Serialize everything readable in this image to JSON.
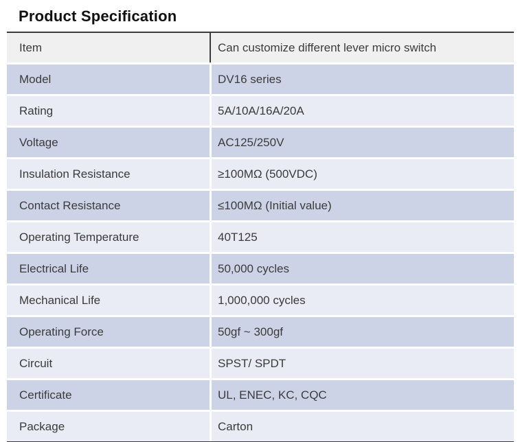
{
  "page": {
    "title": "Product Specification"
  },
  "table": {
    "columns": [
      "label",
      "value"
    ],
    "rows": [
      {
        "label": "Item",
        "value": "Can customize different lever micro switch"
      },
      {
        "label": "Model",
        "value": "DV16 series"
      },
      {
        "label": "Rating",
        "value": "5A/10A/16A/20A"
      },
      {
        "label": "Voltage",
        "value": "AC125/250V"
      },
      {
        "label": "Insulation Resistance",
        "value": "≥100MΩ (500VDC)"
      },
      {
        "label": "Contact Resistance",
        "value": "≤100MΩ (Initial value)"
      },
      {
        "label": "Operating Temperature",
        "value": "40T125"
      },
      {
        "label": "Electrical Life",
        "value": "50,000 cycles"
      },
      {
        "label": "Mechanical Life",
        "value": "1,000,000 cycles"
      },
      {
        "label": "Operating Force",
        "value": "50gf ~ 300gf"
      },
      {
        "label": "Circuit",
        "value": "SPST/ SPDT"
      },
      {
        "label": "Certificate",
        "value": "UL, ENEC, KC, CQC"
      },
      {
        "label": "Package",
        "value": "Carton"
      }
    ],
    "colors": {
      "header_row_bg": "#f0f0f1",
      "row_medium_lavender": "#cdd3e7",
      "row_light_lavender": "#e9ebf5",
      "border_dark": "#3a3a3a",
      "cell_text": "#3b3b3b"
    }
  }
}
